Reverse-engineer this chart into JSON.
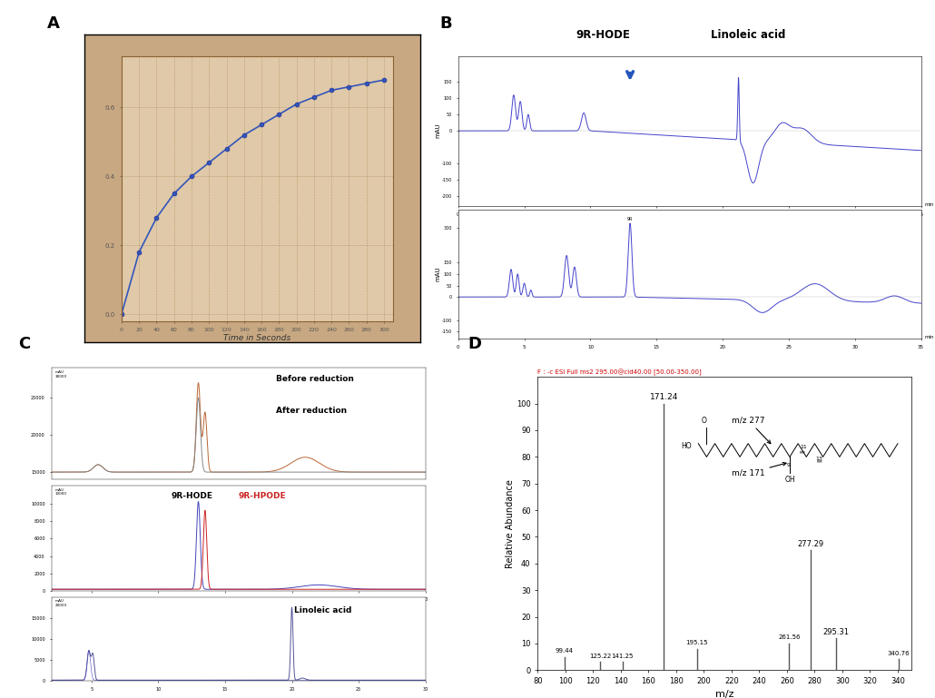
{
  "panel_labels": [
    "A",
    "B",
    "C",
    "D"
  ],
  "panel_label_fontsize": 13,
  "panel_label_fontweight": "bold",
  "background_color": "#ffffff",
  "text_color": "#000000",
  "line_color_blue": "#4444bb",
  "line_color_red": "#cc2222",
  "panel_A": {
    "xlabel": "Time in Seconds",
    "x_data": [
      0,
      20,
      40,
      60,
      80,
      100,
      120,
      140,
      160,
      180,
      200,
      220,
      240,
      260,
      280,
      300
    ],
    "y_data": [
      0.0,
      0.18,
      0.28,
      0.35,
      0.4,
      0.44,
      0.48,
      0.52,
      0.55,
      0.58,
      0.61,
      0.63,
      0.65,
      0.66,
      0.67,
      0.68
    ],
    "yticks": [
      0.0,
      0.2,
      0.4,
      0.6
    ],
    "plot_bg": "#dfc9a8",
    "outer_bg": "#c8a882",
    "grid_color": "#aa8855"
  },
  "panel_B": {
    "annotation_9R_HODE": "9R-HODE",
    "annotation_linoleic": "Linoleic acid",
    "arrow_color": "#2255bb"
  },
  "panel_C": {
    "label_before": "Before reduction",
    "label_after": "After reduction",
    "label_9R_HODE": "9R-HODE",
    "label_9R_HPODE": "9R-HPODE",
    "label_linoleic": "Linoleic acid"
  },
  "panel_D": {
    "title": "F : -c ESI Full ms2 295.00@cid40.00 [50.00-350.00]",
    "xlabel": "m/z",
    "ylabel": "Relative Abundance",
    "peaks_x": [
      99.44,
      125.22,
      141.25,
      171.24,
      195.15,
      261.56,
      277.29,
      295.31,
      340.76
    ],
    "peaks_y": [
      5,
      3,
      3,
      100,
      8,
      10,
      45,
      12,
      4
    ],
    "xlim": [
      80,
      350
    ],
    "ylim": [
      0,
      110
    ],
    "xticks": [
      80,
      100,
      120,
      140,
      160,
      180,
      200,
      220,
      240,
      260,
      280,
      300,
      320,
      340
    ]
  }
}
